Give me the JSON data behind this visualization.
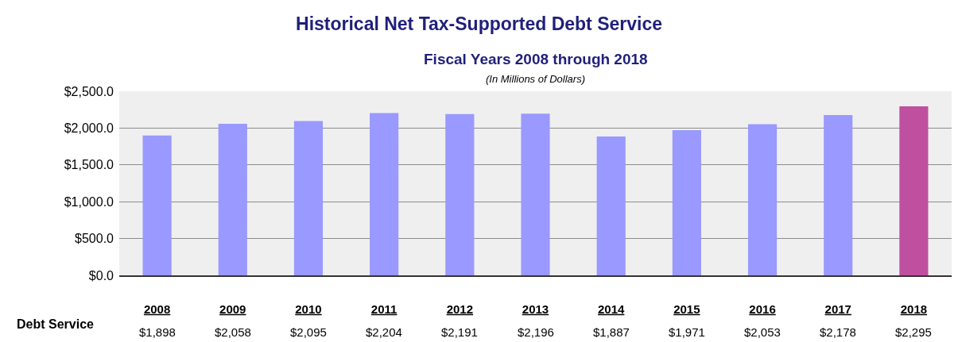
{
  "chart_data": {
    "type": "bar",
    "title": "Historical Net Tax-Supported Debt Service",
    "subtitle": "Fiscal Years 2008 through 2018",
    "annotations": [
      "(In Millions of Dollars)"
    ],
    "categories": [
      "2008",
      "2009",
      "2010",
      "2011",
      "2012",
      "2013",
      "2014",
      "2015",
      "2016",
      "2017",
      "2018"
    ],
    "series": [
      {
        "name": "Debt Service",
        "colors": [
          "#9999ff",
          "#9999ff",
          "#9999ff",
          "#9999ff",
          "#9999ff",
          "#9999ff",
          "#9999ff",
          "#9999ff",
          "#9999ff",
          "#9999ff",
          "#bf4f9f"
        ],
        "values": [
          1898,
          2058,
          2095,
          2204,
          2191,
          2196,
          1887,
          1971,
          2053,
          2178,
          2295
        ],
        "value_labels": [
          "$1,898",
          "$2,058",
          "$2,095",
          "$2,204",
          "$2,191",
          "$2,196",
          "$1,887",
          "$1,971",
          "$2,053",
          "$2,178",
          "$2,295"
        ]
      }
    ],
    "ylim": [
      0,
      2500
    ],
    "yticks": [
      {
        "value": 0,
        "label": "$0.0"
      },
      {
        "value": 500,
        "label": "$500.0"
      },
      {
        "value": 1000,
        "label": "$1,000.0"
      },
      {
        "value": 1500,
        "label": "$1,500.0"
      },
      {
        "value": 2000,
        "label": "$2,000.0"
      },
      {
        "value": 2500,
        "label": "$2,500.0"
      }
    ],
    "grid": "y",
    "legend": false
  }
}
